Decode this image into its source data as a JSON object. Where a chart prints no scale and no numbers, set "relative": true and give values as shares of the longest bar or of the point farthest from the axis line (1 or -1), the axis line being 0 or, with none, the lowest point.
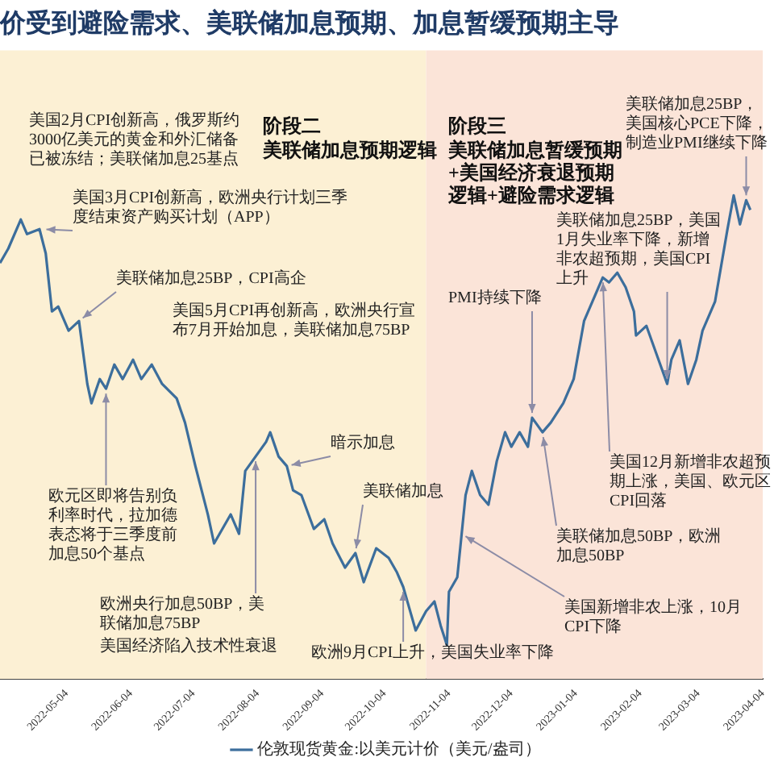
{
  "chart_data": {
    "type": "line",
    "title": "价受到避险需求、美联储加息预期、加息暂缓预期主导",
    "relative": true,
    "marker": "none",
    "legend": "bottom",
    "x": [
      "2022-04-02",
      "2022-04-06",
      "2022-04-12",
      "2022-04-15",
      "2022-04-21",
      "2022-04-24",
      "2022-04-27",
      "2022-04-30",
      "2022-05-05",
      "2022-05-10",
      "2022-05-14",
      "2022-05-16",
      "2022-05-20",
      "2022-05-23",
      "2022-05-27",
      "2022-05-31",
      "2022-06-05",
      "2022-06-09",
      "2022-06-14",
      "2022-06-19",
      "2022-06-26",
      "2022-06-30",
      "2022-07-05",
      "2022-07-11",
      "2022-07-14",
      "2022-07-18",
      "2022-07-22",
      "2022-07-26",
      "2022-07-29",
      "2022-08-03",
      "2022-08-08",
      "2022-08-10",
      "2022-08-14",
      "2022-08-18",
      "2022-08-21",
      "2022-08-25",
      "2022-08-31",
      "2022-09-05",
      "2022-09-09",
      "2022-09-15",
      "2022-09-20",
      "2022-09-24",
      "2022-09-30",
      "2022-10-06",
      "2022-10-10",
      "2022-10-13",
      "2022-10-19",
      "2022-10-24",
      "2022-10-28",
      "2022-10-31",
      "2022-11-03",
      "2022-11-04",
      "2022-11-08",
      "2022-11-12",
      "2022-11-15",
      "2022-11-19",
      "2022-11-23",
      "2022-11-27",
      "2022-12-01",
      "2022-12-04",
      "2022-12-08",
      "2022-12-12",
      "2022-12-14",
      "2022-12-19",
      "2022-12-23",
      "2022-12-29",
      "2023-01-03",
      "2023-01-08",
      "2023-01-11",
      "2023-01-17",
      "2023-01-20",
      "2023-01-24",
      "2023-01-28",
      "2023-02-01",
      "2023-02-02",
      "2023-02-07",
      "2023-02-12",
      "2023-02-17",
      "2023-02-19",
      "2023-02-23",
      "2023-02-27",
      "2023-03-03",
      "2023-03-06",
      "2023-03-12",
      "2023-03-14",
      "2023-03-18",
      "2023-03-21",
      "2023-03-24",
      "2023-03-27",
      "2023-03-29"
    ],
    "series": [
      {
        "name": "伦敦现货黄金:以美元计价（美元/盎司）",
        "color": "#3c6e9c",
        "values": [
          0.86,
          0.89,
          0.95,
          0.92,
          0.93,
          0.88,
          0.76,
          0.77,
          0.72,
          0.74,
          0.61,
          0.57,
          0.62,
          0.6,
          0.65,
          0.62,
          0.66,
          0.62,
          0.65,
          0.61,
          0.58,
          0.53,
          0.44,
          0.34,
          0.28,
          0.31,
          0.34,
          0.3,
          0.43,
          0.46,
          0.49,
          0.51,
          0.46,
          0.44,
          0.39,
          0.38,
          0.31,
          0.33,
          0.28,
          0.23,
          0.26,
          0.2,
          0.27,
          0.25,
          0.22,
          0.19,
          0.1,
          0.14,
          0.16,
          0.11,
          0.07,
          0.18,
          0.21,
          0.38,
          0.43,
          0.38,
          0.36,
          0.45,
          0.51,
          0.48,
          0.51,
          0.48,
          0.54,
          0.51,
          0.53,
          0.57,
          0.62,
          0.74,
          0.77,
          0.83,
          0.82,
          0.84,
          0.81,
          0.76,
          0.71,
          0.73,
          0.67,
          0.61,
          0.66,
          0.7,
          0.61,
          0.66,
          0.72,
          0.78,
          0.83,
          0.93,
          1,
          0.94,
          0.99,
          0.97
        ]
      }
    ],
    "xlim": [
      "2022-04-02",
      "2023-04-04"
    ],
    "xticks": [
      "2022-05-04",
      "2022-06-04",
      "2022-07-04",
      "2022-08-04",
      "2022-09-04",
      "2022-10-04",
      "2022-11-04",
      "2022-12-04",
      "2023-01-04",
      "2023-02-04",
      "2023-03-04",
      "2023-04-04"
    ],
    "bands": [
      {
        "axis": "x",
        "from": "2022-04-02",
        "to": "2022-10-24",
        "label": "阶段二",
        "color": "#fcf0d4"
      },
      {
        "axis": "x",
        "from": "2022-10-24",
        "to": "2023-04-04",
        "label": "阶段三",
        "color": "#fbe4d8"
      }
    ],
    "annotations": [
      "美国2月CPI创新高，俄罗斯约3000亿美元的黄金和外汇储备已被冻结；美联储加息25基点",
      {
        "text": "美国3月CPI创新高，欧洲央行计划三季度结束资产购买计划（APP）",
        "x": "2022-04-22",
        "y": 0.93
      },
      {
        "text": "美联储加息25BP，CPI高企",
        "x": "2022-05-10",
        "y": 0.74
      },
      "美国5月CPI再创新高，欧洲央行宣布7月开始加息，美联储加息75BP",
      {
        "text": "暗示加息",
        "x": "2022-08-18",
        "y": 0.44
      },
      {
        "text": "欧元区即将告别负利率时代，拉加德表态将于三季度前加息50个基点",
        "x": "2022-05-23",
        "y": 0.6
      },
      {
        "text": "美联储加息",
        "x": "2022-09-20",
        "y": 0.26
      },
      {
        "text": "欧洲央行加息50BP，美联储加息75BP",
        "x": "2022-08-03",
        "y": 0.46
      },
      "美国经济陷入技术性衰退",
      {
        "text": "欧洲9月CPI上升，美国失业率下降",
        "x": "2022-10-13",
        "y": 0.19
      },
      {
        "text": "美联储加息25BP，美国核心PCE下降，制造业PMI继续下降",
        "x": "2023-03-27",
        "y": 0.99
      },
      {
        "text": "美联储加息25BP，美国1月失业率下降，新增非农超预期，美国CPI上升",
        "x": "2023-02-17",
        "y": 0.61
      },
      {
        "text": "PMI持续下降",
        "x": "2022-12-14",
        "y": 0.54
      },
      {
        "text": "美国12月新增非农超预期上涨，美国、欧元区CPI回落",
        "x": "2023-01-17",
        "y": 0.83
      },
      {
        "text": "美联储加息50BP，欧洲加息50BP",
        "x": "2022-12-19",
        "y": 0.51
      },
      {
        "text": "美国新增非农上涨，10月CPI下降",
        "x": "2022-11-10",
        "y": 0.3
      },
      "美联储加息预期逻辑",
      "美联储加息暂缓预期+美国经济衰退预期逻辑+避险需求逻辑"
    ]
  }
}
